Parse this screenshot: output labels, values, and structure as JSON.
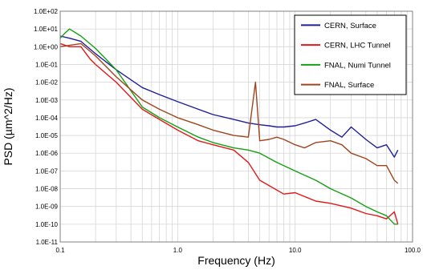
{
  "chart_data": {
    "type": "line",
    "xlabel": "Frequency (Hz)",
    "ylabel": "PSD (µm^2/Hz)",
    "x_scale": "log",
    "y_scale": "log",
    "xlim": [
      0.1,
      100
    ],
    "ylim": [
      1e-11,
      100
    ],
    "x_tick_labels": [
      "0.1",
      "1.0",
      "10.0",
      "100.0"
    ],
    "y_tick_labels": [
      "1.0E-11",
      "1.0E-10",
      "1.0E-09",
      "1.0E-08",
      "1.0E-07",
      "1.0E-06",
      "1.0E-05",
      "1.0E-04",
      "1.0E-03",
      "1.0E-02",
      "1.0E-01",
      "1.0E+00",
      "1.0E+01",
      "1.0E+02"
    ],
    "grid": true,
    "legend_position": "top-right",
    "series": [
      {
        "name": "CERN, Surface",
        "color": "#1f1f9a",
        "x": [
          0.1,
          0.12,
          0.15,
          0.2,
          0.3,
          0.5,
          0.7,
          1.0,
          1.5,
          2.0,
          3.0,
          4.0,
          5.0,
          6.0,
          7.0,
          8.0,
          10.0,
          12.0,
          15.0,
          20.0,
          25.0,
          30.0,
          40.0,
          50.0,
          60.0,
          70.0,
          75.0
        ],
        "y": [
          4,
          3,
          2,
          0.4,
          0.05,
          0.005,
          0.002,
          0.0008,
          0.0003,
          0.00015,
          8e-05,
          5e-05,
          4e-05,
          3.5e-05,
          3e-05,
          3e-05,
          3.5e-05,
          5e-05,
          8e-05,
          2e-05,
          8e-06,
          3e-05,
          6e-06,
          2e-06,
          3e-06,
          6e-07,
          1.5e-06
        ]
      },
      {
        "name": "CERN, LHC Tunnel",
        "color": "#e01a1a",
        "x": [
          0.1,
          0.12,
          0.15,
          0.18,
          0.2,
          0.3,
          0.5,
          0.7,
          1.0,
          1.5,
          2.0,
          3.0,
          4.0,
          5.0,
          6.0,
          8.0,
          10.0,
          15.0,
          20.0,
          30.0,
          40.0,
          50.0,
          60.0,
          70.0,
          75.0
        ],
        "y": [
          1.5,
          1.0,
          1.0,
          0.2,
          0.1,
          0.01,
          0.0003,
          8e-05,
          2e-05,
          5e-06,
          3e-06,
          1.5e-06,
          3e-07,
          3e-08,
          1.5e-08,
          5e-09,
          6e-09,
          2e-09,
          1.5e-09,
          8e-10,
          4e-10,
          3e-10,
          2e-10,
          5e-10,
          1e-10
        ]
      },
      {
        "name": "FNAL, Numi Tunnel",
        "color": "#14a014",
        "x": [
          0.1,
          0.11,
          0.12,
          0.15,
          0.2,
          0.3,
          0.5,
          0.7,
          1.0,
          1.5,
          2.0,
          3.0,
          4.0,
          5.0,
          7.0,
          10.0,
          15.0,
          20.0,
          30.0,
          40.0,
          50.0,
          60.0,
          70.0,
          75.0
        ],
        "y": [
          3,
          6,
          10,
          4,
          0.8,
          0.05,
          0.0004,
          0.0001,
          3e-05,
          8e-06,
          4e-06,
          2e-06,
          1.5e-06,
          1e-06,
          3e-07,
          1e-07,
          3e-08,
          1e-08,
          3e-09,
          1e-09,
          5e-10,
          3e-10,
          1e-10,
          1e-10
        ]
      },
      {
        "name": "FNAL, Surface",
        "color": "#a0441e",
        "x": [
          0.1,
          0.12,
          0.15,
          0.2,
          0.3,
          0.5,
          0.7,
          1.0,
          1.5,
          2.0,
          3.0,
          4.0,
          4.6,
          5.0,
          6.0,
          7.0,
          8.0,
          10.0,
          12.0,
          15.0,
          20.0,
          25.0,
          30.0,
          40.0,
          50.0,
          60.0,
          70.0,
          75.0
        ],
        "y": [
          1.0,
          1.2,
          1.5,
          0.3,
          0.02,
          0.001,
          0.0003,
          0.0001,
          4e-05,
          2e-05,
          1e-05,
          8e-06,
          0.01,
          5e-06,
          6e-06,
          8e-06,
          6e-06,
          3e-06,
          2e-06,
          4e-06,
          5e-06,
          3e-06,
          1e-06,
          5e-07,
          2e-07,
          2e-07,
          3e-08,
          2e-08
        ]
      }
    ]
  }
}
